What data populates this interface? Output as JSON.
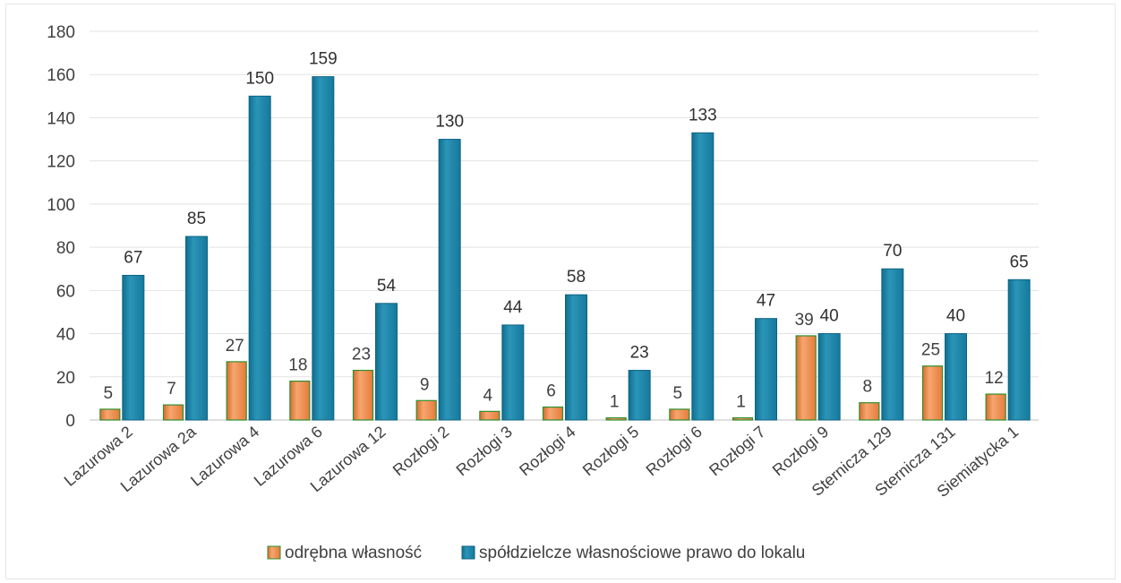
{
  "chart_data": {
    "type": "bar",
    "title": "",
    "xlabel": "",
    "ylabel": "",
    "ylim": [
      0,
      180
    ],
    "yticks": [
      0,
      20,
      40,
      60,
      80,
      100,
      120,
      140,
      160,
      180
    ],
    "grid": true,
    "legend_position": "bottom",
    "categories": [
      "Lazurowa 2",
      "Lazurowa 2a",
      "Lazurowa 4",
      "Lazurowa 6",
      "Lazurowa 12",
      "Rozłogi 2",
      "Rozłogi 3",
      "Rozłogi 4",
      "Rozłogi 5",
      "Rozłogi 6",
      "Rozłogi 7",
      "Rozłogi 9",
      "Sternicza 129",
      "Sternicza 131",
      "Siemiatycka 1"
    ],
    "series": [
      {
        "name": "odrębna własność",
        "color": "#f08a4b",
        "values": [
          5,
          7,
          27,
          18,
          23,
          9,
          4,
          6,
          1,
          5,
          1,
          39,
          8,
          25,
          12
        ]
      },
      {
        "name": "spółdzielcze własnościowe prawo do lokalu",
        "color": "#1d84a6",
        "values": [
          67,
          85,
          150,
          159,
          54,
          130,
          44,
          58,
          23,
          133,
          47,
          40,
          70,
          40,
          65
        ]
      }
    ]
  }
}
